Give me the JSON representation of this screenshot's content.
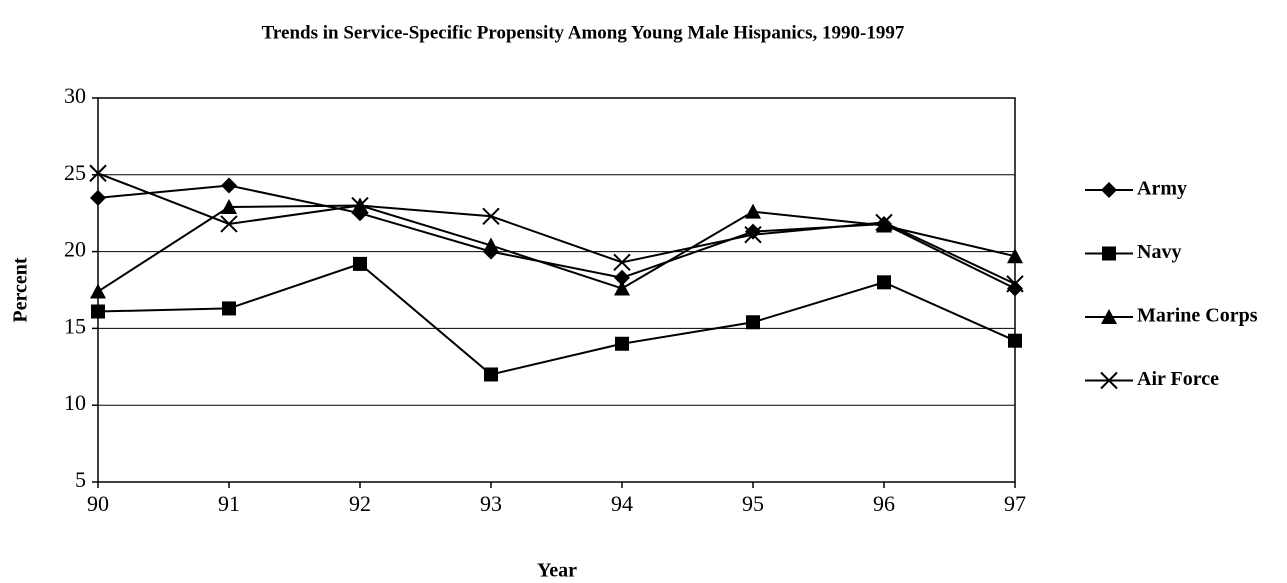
{
  "chart_data": {
    "type": "line",
    "title": "Trends in Service-Specific Propensity Among Young Male Hispanics, 1990-1997",
    "x_label": "Year",
    "y_label": "Percent",
    "categories": [
      "90",
      "91",
      "92",
      "93",
      "94",
      "95",
      "96",
      "97"
    ],
    "series": [
      {
        "name": "Army",
        "color": "#000000",
        "marker": "diamond",
        "values": [
          23.5,
          24.3,
          22.5,
          20.0,
          18.3,
          21.3,
          21.8,
          17.6
        ]
      },
      {
        "name": "Navy",
        "color": "#000000",
        "marker": "square",
        "values": [
          16.1,
          16.3,
          19.2,
          12.0,
          14.0,
          15.4,
          18.0,
          14.2
        ]
      },
      {
        "name": "Marine Corps",
        "color": "#000000",
        "marker": "triangle",
        "values": [
          17.4,
          22.9,
          23.0,
          20.4,
          17.6,
          22.6,
          21.7,
          19.7
        ]
      },
      {
        "name": "Air Force",
        "color": "#000000",
        "marker": "x",
        "values": [
          25.1,
          21.8,
          23.0,
          22.3,
          19.3,
          21.1,
          21.9,
          17.9
        ]
      }
    ],
    "ylim": [
      5,
      30
    ],
    "yticks": [
      5,
      10,
      15,
      20,
      25,
      30
    ],
    "grid": true,
    "legend": "right"
  }
}
